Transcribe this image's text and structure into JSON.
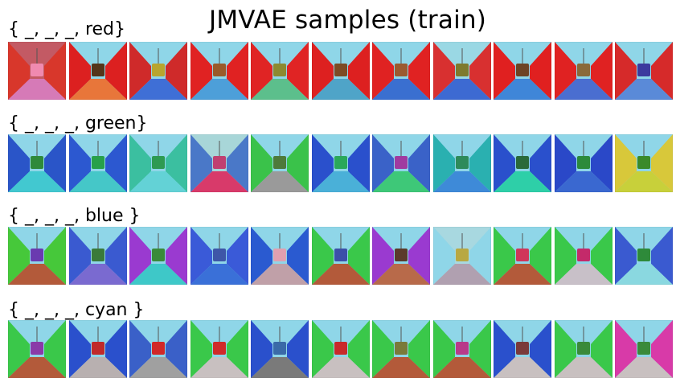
{
  "title": "JMVAE samples (train)",
  "rows": [
    {
      "label": "{ _, _, _, red}",
      "cells": [
        {
          "wall": "#d8372b",
          "sky": "#c35a64",
          "floor": "#d67ab7",
          "obj": "#f08ab0"
        },
        {
          "wall": "#dc2020",
          "sky": "#8fd6e8",
          "floor": "#e8763a",
          "obj": "#54351a"
        },
        {
          "wall": "#cf2a2a",
          "sky": "#8fd6e8",
          "floor": "#3f6fd6",
          "obj": "#b8a52e"
        },
        {
          "wall": "#e02222",
          "sky": "#8fd6e8",
          "floor": "#4d9fd9",
          "obj": "#9a5a2a"
        },
        {
          "wall": "#e02424",
          "sky": "#8fd6e8",
          "floor": "#5cbf8c",
          "obj": "#8c8a30"
        },
        {
          "wall": "#dd2020",
          "sky": "#8fd6e8",
          "floor": "#4fa4c8",
          "obj": "#7d4b25"
        },
        {
          "wall": "#e02222",
          "sky": "#8fd6e8",
          "floor": "#3a6fd0",
          "obj": "#9b5a30"
        },
        {
          "wall": "#d83030",
          "sky": "#9ad8e4",
          "floor": "#3d6ad2",
          "obj": "#7e7a2e"
        },
        {
          "wall": "#e02020",
          "sky": "#8fd6e8",
          "floor": "#3f86d8",
          "obj": "#6d4325"
        },
        {
          "wall": "#e02222",
          "sky": "#8fd6e8",
          "floor": "#4a6ed0",
          "obj": "#8a6a3a"
        },
        {
          "wall": "#d62a2a",
          "sky": "#8fd6e8",
          "floor": "#5a8ad8",
          "obj": "#3c3a9e"
        }
      ]
    },
    {
      "label": "{ _, _, _, green}",
      "cells": [
        {
          "wall": "#2a55c8",
          "sky": "#8fd6e8",
          "floor": "#42c8d0",
          "obj": "#2f8a3a"
        },
        {
          "wall": "#2c58d0",
          "sky": "#8fd6e8",
          "floor": "#45c7c8",
          "obj": "#27a04a"
        },
        {
          "wall": "#3bbfa0",
          "sky": "#8fd6e8",
          "floor": "#63d2d6",
          "obj": "#2e9a52"
        },
        {
          "wall": "#4a78c8",
          "sky": "#a8d6d8",
          "floor": "#d83a6a",
          "obj": "#c04070"
        },
        {
          "wall": "#3ac24a",
          "sky": "#8fd6e8",
          "floor": "#9a9a9a",
          "obj": "#4e7a3a"
        },
        {
          "wall": "#2a50cc",
          "sky": "#8fd6e8",
          "floor": "#4ab0d8",
          "obj": "#2aa85a"
        },
        {
          "wall": "#3a62c8",
          "sky": "#8fd6e8",
          "floor": "#3ec878",
          "obj": "#a03aa0"
        },
        {
          "wall": "#2ab0b0",
          "sky": "#8fd6e8",
          "floor": "#3e8ad8",
          "obj": "#2e8a5a"
        },
        {
          "wall": "#2a50cc",
          "sky": "#8fd6e8",
          "floor": "#2ecfa8",
          "obj": "#2a6a3a"
        },
        {
          "wall": "#2a48c8",
          "sky": "#8fd6e8",
          "floor": "#3a68d0",
          "obj": "#2c8a3c"
        },
        {
          "wall": "#d8c83a",
          "sky": "#8fd6e8",
          "floor": "#c8d03a",
          "obj": "#3a8a2a"
        }
      ]
    },
    {
      "label": "{ _, _, _, blue }",
      "cells": [
        {
          "wall": "#46c83a",
          "sky": "#8fd6e8",
          "floor": "#b35a3a",
          "obj": "#6a3ab0"
        },
        {
          "wall": "#3a5ad0",
          "sky": "#8fd6e8",
          "floor": "#7a6ad0",
          "obj": "#3a7a3a"
        },
        {
          "wall": "#9a3ad0",
          "sky": "#8fd6e8",
          "floor": "#3ec8c8",
          "obj": "#3a8a3a"
        },
        {
          "wall": "#3a5ad8",
          "sky": "#8fd6e8",
          "floor": "#3a70d8",
          "obj": "#3e56a8"
        },
        {
          "wall": "#2a5ad0",
          "sky": "#8fd6e8",
          "floor": "#c0a0a8",
          "obj": "#e0a0b0"
        },
        {
          "wall": "#3ac84a",
          "sky": "#8fd6e8",
          "floor": "#b35a3a",
          "obj": "#3c50a8"
        },
        {
          "wall": "#9a3ad0",
          "sky": "#8fd6e8",
          "floor": "#b86a4a",
          "obj": "#5a3a2a"
        },
        {
          "wall": "#8fd6e8",
          "sky": "#a8d8e0",
          "floor": "#b0a0b0",
          "obj": "#b8a842"
        },
        {
          "wall": "#3ac84a",
          "sky": "#8fd6e8",
          "floor": "#b35a3a",
          "obj": "#d0355a"
        },
        {
          "wall": "#3ac84a",
          "sky": "#8fd6e8",
          "floor": "#c8c0c8",
          "obj": "#c42a6a"
        },
        {
          "wall": "#3a5ad0",
          "sky": "#8fd6e8",
          "floor": "#8ad8e0",
          "obj": "#2e8a3a"
        }
      ]
    },
    {
      "label": "{ _, _, _, cyan }",
      "cells": [
        {
          "wall": "#3ac84a",
          "sky": "#8fd6e8",
          "floor": "#b35a3a",
          "obj": "#8a3aa8"
        },
        {
          "wall": "#2a50cc",
          "sky": "#8fd6e8",
          "floor": "#b8b0b0",
          "obj": "#c02a2a"
        },
        {
          "wall": "#3a60c8",
          "sky": "#8fd6e8",
          "floor": "#a0a0a0",
          "obj": "#d02828"
        },
        {
          "wall": "#3ac84a",
          "sky": "#8fd6e8",
          "floor": "#c8c0c0",
          "obj": "#d02a2a"
        },
        {
          "wall": "#2a50cc",
          "sky": "#8fd6e8",
          "floor": "#7a7a7a",
          "obj": "#3a6aa8"
        },
        {
          "wall": "#3ac84a",
          "sky": "#8fd6e8",
          "floor": "#c8c0c0",
          "obj": "#c82a2a"
        },
        {
          "wall": "#3ac84a",
          "sky": "#8fd6e8",
          "floor": "#b35a3a",
          "obj": "#7a7a3a"
        },
        {
          "wall": "#3ac84a",
          "sky": "#8fd6e8",
          "floor": "#b35a3a",
          "obj": "#b83a8a"
        },
        {
          "wall": "#2a50cc",
          "sky": "#8fd6e8",
          "floor": "#c8c0c0",
          "obj": "#7a3a3a"
        },
        {
          "wall": "#3ac84a",
          "sky": "#8fd6e8",
          "floor": "#c8c0c0",
          "obj": "#3a8a3a"
        },
        {
          "wall": "#d83aa8",
          "sky": "#8fd6e8",
          "floor": "#c8c0c0",
          "obj": "#3a8a3a"
        }
      ]
    }
  ]
}
